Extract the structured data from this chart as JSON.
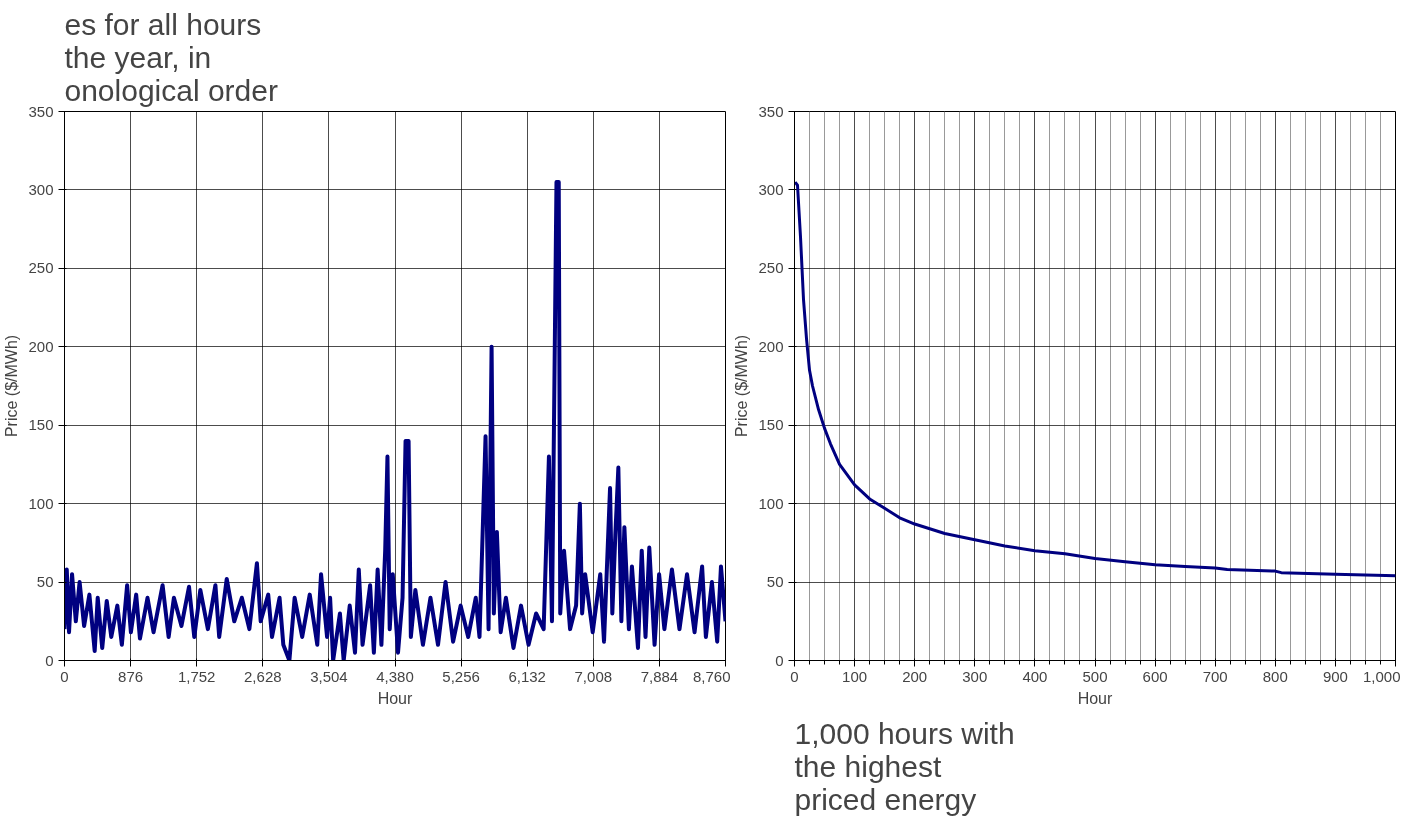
{
  "chart_data": [
    {
      "type": "line",
      "xlabel": "Hour",
      "ylabel": "Price ($/MWh)",
      "annotations": [
        "es for all hours\nthe year, in\nonological order"
      ],
      "grid": true,
      "xlim": [
        0,
        8760
      ],
      "ylim": [
        0,
        350
      ],
      "xticks": [
        0,
        876,
        {
          "value": 1752,
          "label": "1,752"
        },
        {
          "value": 2628,
          "label": "2,628"
        },
        {
          "value": 3504,
          "label": "3,504"
        },
        {
          "value": 4380,
          "label": "4,380"
        },
        {
          "value": 5256,
          "label": "5,256"
        },
        {
          "value": 6132,
          "label": "6,132"
        },
        {
          "value": 7008,
          "label": "7,008"
        },
        {
          "value": 7884,
          "label": "7,884"
        },
        {
          "value": 8760,
          "label": "8,760"
        }
      ],
      "yticks": [
        0,
        50,
        100,
        150,
        200,
        250,
        300,
        350
      ],
      "x": [
        0,
        30,
        60,
        100,
        150,
        200,
        260,
        330,
        400,
        440,
        500,
        560,
        620,
        700,
        760,
        830,
        880,
        950,
        1000,
        1100,
        1180,
        1300,
        1380,
        1450,
        1550,
        1650,
        1720,
        1800,
        1900,
        2000,
        2050,
        2150,
        2250,
        2350,
        2450,
        2550,
        2600,
        2700,
        2750,
        2850,
        2900,
        2980,
        3050,
        3150,
        3250,
        3350,
        3400,
        3480,
        3520,
        3560,
        3650,
        3700,
        3780,
        3850,
        3900,
        3950,
        4050,
        4100,
        4150,
        4200,
        4250,
        4280,
        4310,
        4350,
        4420,
        4480,
        4520,
        4560,
        4590,
        4650,
        4750,
        4850,
        4950,
        5050,
        5150,
        5250,
        5350,
        5450,
        5500,
        5580,
        5620,
        5660,
        5690,
        5730,
        5780,
        5850,
        5950,
        6050,
        6150,
        6250,
        6350,
        6420,
        6460,
        6520,
        6550,
        6570,
        6620,
        6700,
        6780,
        6830,
        6860,
        6900,
        7000,
        7100,
        7150,
        7230,
        7260,
        7300,
        7340,
        7380,
        7420,
        7480,
        7520,
        7600,
        7650,
        7700,
        7750,
        7820,
        7880,
        7950,
        8050,
        8150,
        8250,
        8350,
        8450,
        8500,
        8580,
        8650,
        8700,
        8760
      ],
      "series": [
        {
          "color": "#000080",
          "values": [
            20,
            58,
            18,
            55,
            25,
            50,
            22,
            42,
            6,
            40,
            8,
            38,
            15,
            35,
            10,
            48,
            18,
            42,
            14,
            40,
            18,
            48,
            15,
            40,
            22,
            47,
            15,
            45,
            20,
            48,
            15,
            52,
            25,
            40,
            20,
            62,
            25,
            42,
            15,
            40,
            10,
            0,
            40,
            15,
            42,
            10,
            55,
            15,
            40,
            0,
            30,
            0,
            35,
            5,
            58,
            10,
            48,
            5,
            58,
            10,
            70,
            130,
            20,
            55,
            5,
            40,
            140,
            140,
            15,
            45,
            10,
            40,
            10,
            50,
            12,
            35,
            15,
            40,
            15,
            143,
            20,
            200,
            30,
            82,
            18,
            40,
            8,
            35,
            10,
            30,
            20,
            130,
            25,
            305,
            305,
            30,
            70,
            20,
            35,
            100,
            30,
            55,
            18,
            55,
            12,
            110,
            30,
            80,
            123,
            25,
            85,
            20,
            60,
            8,
            70,
            15,
            72,
            10,
            55,
            20,
            58,
            20,
            55,
            18,
            60,
            15,
            50,
            12,
            60,
            25
          ]
        }
      ]
    },
    {
      "type": "line",
      "xlabel": "Hour",
      "ylabel": "Price ($/MWh)",
      "annotations": [
        "1,000 hours with\nthe highest\npriced energy"
      ],
      "grid": true,
      "xlim": [
        0,
        1000
      ],
      "ylim": [
        0,
        350
      ],
      "xticks": [
        0,
        {
          "value": 25,
          "label": null
        },
        {
          "value": 50,
          "label": null
        },
        {
          "value": 75,
          "label": null
        },
        100,
        {
          "value": 125,
          "label": null
        },
        {
          "value": 150,
          "label": null
        },
        {
          "value": 175,
          "label": null
        },
        200,
        {
          "value": 225,
          "label": null
        },
        {
          "value": 250,
          "label": null
        },
        {
          "value": 275,
          "label": null
        },
        300,
        {
          "value": 325,
          "label": null
        },
        {
          "value": 350,
          "label": null
        },
        {
          "value": 375,
          "label": null
        },
        400,
        {
          "value": 425,
          "label": null
        },
        {
          "value": 450,
          "label": null
        },
        {
          "value": 475,
          "label": null
        },
        500,
        {
          "value": 525,
          "label": null
        },
        {
          "value": 550,
          "label": null
        },
        {
          "value": 575,
          "label": null
        },
        600,
        {
          "value": 625,
          "label": null
        },
        {
          "value": 650,
          "label": null
        },
        {
          "value": 675,
          "label": null
        },
        700,
        {
          "value": 725,
          "label": null
        },
        {
          "value": 750,
          "label": null
        },
        {
          "value": 775,
          "label": null
        },
        800,
        {
          "value": 825,
          "label": null
        },
        {
          "value": 850,
          "label": null
        },
        {
          "value": 875,
          "label": null
        },
        900,
        {
          "value": 925,
          "label": null
        },
        {
          "value": 950,
          "label": null
        },
        {
          "value": 975,
          "label": null
        },
        {
          "value": 1000,
          "label": "1,000"
        }
      ],
      "yticks": [
        0,
        50,
        100,
        150,
        200,
        250,
        300,
        350
      ],
      "x": [
        1,
        5,
        10,
        15,
        20,
        25,
        30,
        40,
        50,
        60,
        75,
        100,
        125,
        150,
        175,
        200,
        225,
        250,
        300,
        350,
        400,
        450,
        500,
        550,
        600,
        650,
        700,
        720,
        800,
        810,
        900,
        1000
      ],
      "series": [
        {
          "color": "#000080",
          "values": [
            305,
            303,
            270,
            230,
            205,
            185,
            175,
            160,
            148,
            138,
            125,
            112,
            103,
            97,
            91,
            87,
            84,
            81,
            77,
            73,
            70,
            68,
            65,
            63,
            61,
            60,
            59,
            58,
            57,
            56,
            55,
            54
          ]
        }
      ]
    }
  ]
}
